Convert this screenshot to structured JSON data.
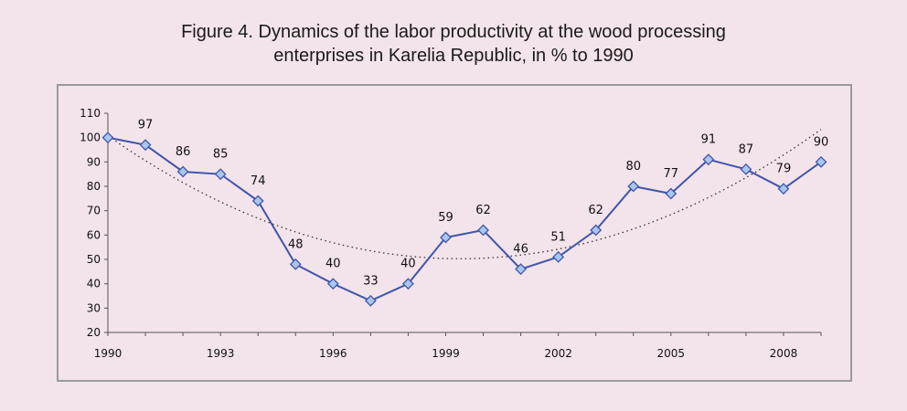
{
  "chart_data": {
    "type": "line",
    "title_line1": "Figure 4. Dynamics of the labor productivity at the wood processing",
    "title_line2": "enterprises in Karelia Republic, in % to 1990",
    "x": [
      1990,
      1991,
      1992,
      1993,
      1994,
      1995,
      1996,
      1997,
      1998,
      1999,
      2000,
      2001,
      2002,
      2003,
      2004,
      2005,
      2006,
      2007,
      2008,
      2009
    ],
    "x_tick_labels": [
      "1990",
      "1993",
      "1996",
      "1999",
      "2002",
      "2005",
      "2008"
    ],
    "y_tick_labels": [
      "20",
      "30",
      "40",
      "50",
      "60",
      "70",
      "80",
      "90",
      "100",
      "110"
    ],
    "ylim": [
      20,
      110
    ],
    "xlim": [
      1990,
      2009
    ],
    "series": [
      {
        "values": [
          100,
          97,
          86,
          85,
          74,
          48,
          40,
          33,
          40,
          59,
          62,
          46,
          51,
          62,
          80,
          77,
          91,
          87,
          79,
          90
        ],
        "labels": [
          "",
          "97",
          "86",
          "85",
          "74",
          "48",
          "40",
          "33",
          "40",
          "59",
          "62",
          "46",
          "51",
          "62",
          "80",
          "77",
          "91",
          "87",
          "79",
          "90"
        ],
        "color": "#3f56a8",
        "marker_color": "#a9c6ef"
      }
    ],
    "trendline": {
      "type": "polynomial",
      "order": 2,
      "style": "dotted",
      "color": "#333333"
    },
    "grid": false,
    "legend": "none"
  }
}
